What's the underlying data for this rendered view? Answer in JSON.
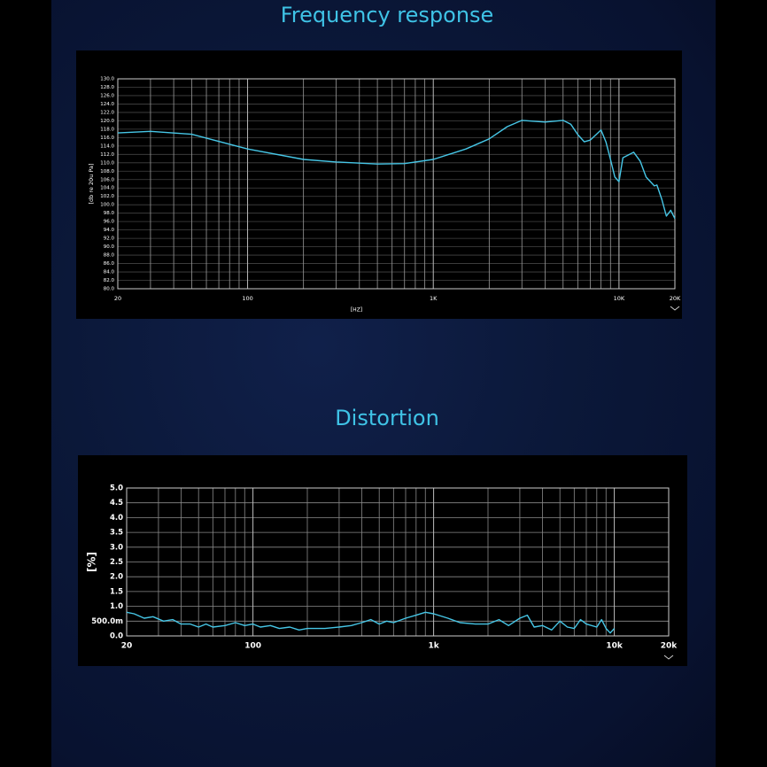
{
  "chart_data": [
    {
      "type": "line",
      "title": "Frequency response",
      "xlabel": "[HZ]",
      "ylabel": "[db re 20u Pa]",
      "xscale": "log",
      "xlim": [
        20,
        20000
      ],
      "ylim": [
        80,
        130
      ],
      "grid": true,
      "color": "#46c6e6",
      "xticks": [
        20,
        100,
        {
          "value": 1000,
          "label": "1K"
        },
        {
          "value": 10000,
          "label": "10K"
        },
        {
          "value": 20000,
          "label": "20K"
        }
      ],
      "xminor": [
        30,
        40,
        50,
        60,
        70,
        80,
        90,
        200,
        300,
        400,
        500,
        600,
        700,
        800,
        900,
        2000,
        3000,
        4000,
        5000,
        6000,
        7000,
        8000,
        9000
      ],
      "yticks": [
        {
          "value": 130,
          "label": "130.0"
        },
        {
          "value": 128,
          "label": "128.0"
        },
        {
          "value": 126,
          "label": "126.0"
        },
        {
          "value": 124,
          "label": "124.0"
        },
        {
          "value": 122,
          "label": "122.0"
        },
        {
          "value": 120,
          "label": "120.0"
        },
        {
          "value": 118,
          "label": "118.0"
        },
        {
          "value": 116,
          "label": "116.0"
        },
        {
          "value": 114,
          "label": "114.0"
        },
        {
          "value": 112,
          "label": "112.0"
        },
        {
          "value": 110,
          "label": "110.0"
        },
        {
          "value": 108,
          "label": "108.0"
        },
        {
          "value": 106,
          "label": "106.0"
        },
        {
          "value": 104,
          "label": "104.0"
        },
        {
          "value": 102,
          "label": "102.0"
        },
        {
          "value": 100,
          "label": "100.0"
        },
        {
          "value": 98,
          "label": "98.0"
        },
        {
          "value": 96,
          "label": "96.0"
        },
        {
          "value": 94,
          "label": "94.0"
        },
        {
          "value": 92,
          "label": "92.0"
        },
        {
          "value": 90,
          "label": "90.0"
        },
        {
          "value": 88,
          "label": "88.0"
        },
        {
          "value": 86,
          "label": "86.0"
        },
        {
          "value": 84,
          "label": "84.0"
        },
        {
          "value": 82,
          "label": "82.0"
        },
        {
          "value": 80,
          "label": "80.0"
        }
      ],
      "x": [
        20,
        30,
        50,
        100,
        200,
        300,
        500,
        700,
        1000,
        1500,
        2000,
        2500,
        3000,
        4000,
        5000,
        5500,
        6000,
        6500,
        7000,
        8000,
        8500,
        9000,
        9500,
        10000,
        10500,
        12000,
        13000,
        14000,
        15500,
        16000,
        17000,
        18000,
        19000,
        20000
      ],
      "values": [
        117.1,
        117.5,
        116.8,
        113.3,
        110.8,
        110.2,
        109.7,
        109.8,
        110.8,
        113.3,
        115.7,
        118.6,
        120.1,
        119.7,
        120.1,
        119.2,
        116.7,
        115,
        115.4,
        117.8,
        115,
        110.8,
        106.6,
        105.5,
        111.2,
        112.5,
        110.4,
        106.6,
        104.5,
        104.7,
        101.3,
        97.3,
        98.7,
        96.7
      ]
    },
    {
      "type": "line",
      "title": "Distortion",
      "ylabel": "[%]",
      "xscale": "log",
      "xlim": [
        20,
        20000
      ],
      "ylim": [
        0,
        5
      ],
      "grid": true,
      "color": "#46c6e6",
      "xticks": [
        20,
        100,
        {
          "value": 1000,
          "label": "1k"
        },
        {
          "value": 10000,
          "label": "10k"
        },
        {
          "value": 20000,
          "label": "20k"
        }
      ],
      "xminor": [
        30,
        40,
        50,
        60,
        70,
        80,
        90,
        200,
        300,
        400,
        500,
        600,
        700,
        800,
        900,
        2000,
        3000,
        4000,
        5000,
        6000,
        7000,
        8000,
        9000
      ],
      "yticks": [
        {
          "value": 0,
          "label": "0.0"
        },
        {
          "value": 0.5,
          "label": "500.0m"
        },
        {
          "value": 1,
          "label": "1.0"
        },
        {
          "value": 1.5,
          "label": "1.5"
        },
        {
          "value": 2,
          "label": "2.0"
        },
        {
          "value": 2.5,
          "label": "2.5"
        },
        {
          "value": 3,
          "label": "3.0"
        },
        {
          "value": 3.5,
          "label": "3.5"
        },
        {
          "value": 4,
          "label": "4.0"
        },
        {
          "value": 4.5,
          "label": "4.5"
        },
        {
          "value": 5,
          "label": "5.0"
        }
      ],
      "x": [
        20,
        22,
        25,
        28,
        32,
        36,
        40,
        45,
        50,
        55,
        60,
        70,
        80,
        90,
        100,
        110,
        125,
        140,
        160,
        180,
        200,
        250,
        300,
        350,
        400,
        450,
        500,
        550,
        600,
        700,
        800,
        900,
        1000,
        1200,
        1400,
        1700,
        2000,
        2300,
        2600,
        3000,
        3300,
        3600,
        4000,
        4500,
        5000,
        5500,
        6000,
        6500,
        7000,
        8000,
        8500,
        9000,
        9500,
        10000
      ],
      "values": [
        0.8,
        0.75,
        0.6,
        0.65,
        0.5,
        0.55,
        0.4,
        0.4,
        0.3,
        0.4,
        0.3,
        0.35,
        0.45,
        0.35,
        0.4,
        0.3,
        0.35,
        0.25,
        0.3,
        0.2,
        0.25,
        0.25,
        0.3,
        0.35,
        0.45,
        0.55,
        0.4,
        0.5,
        0.45,
        0.6,
        0.7,
        0.8,
        0.75,
        0.6,
        0.45,
        0.4,
        0.4,
        0.55,
        0.35,
        0.6,
        0.7,
        0.3,
        0.35,
        0.2,
        0.5,
        0.3,
        0.25,
        0.55,
        0.4,
        0.3,
        0.55,
        0.25,
        0.1,
        0.25
      ]
    }
  ]
}
